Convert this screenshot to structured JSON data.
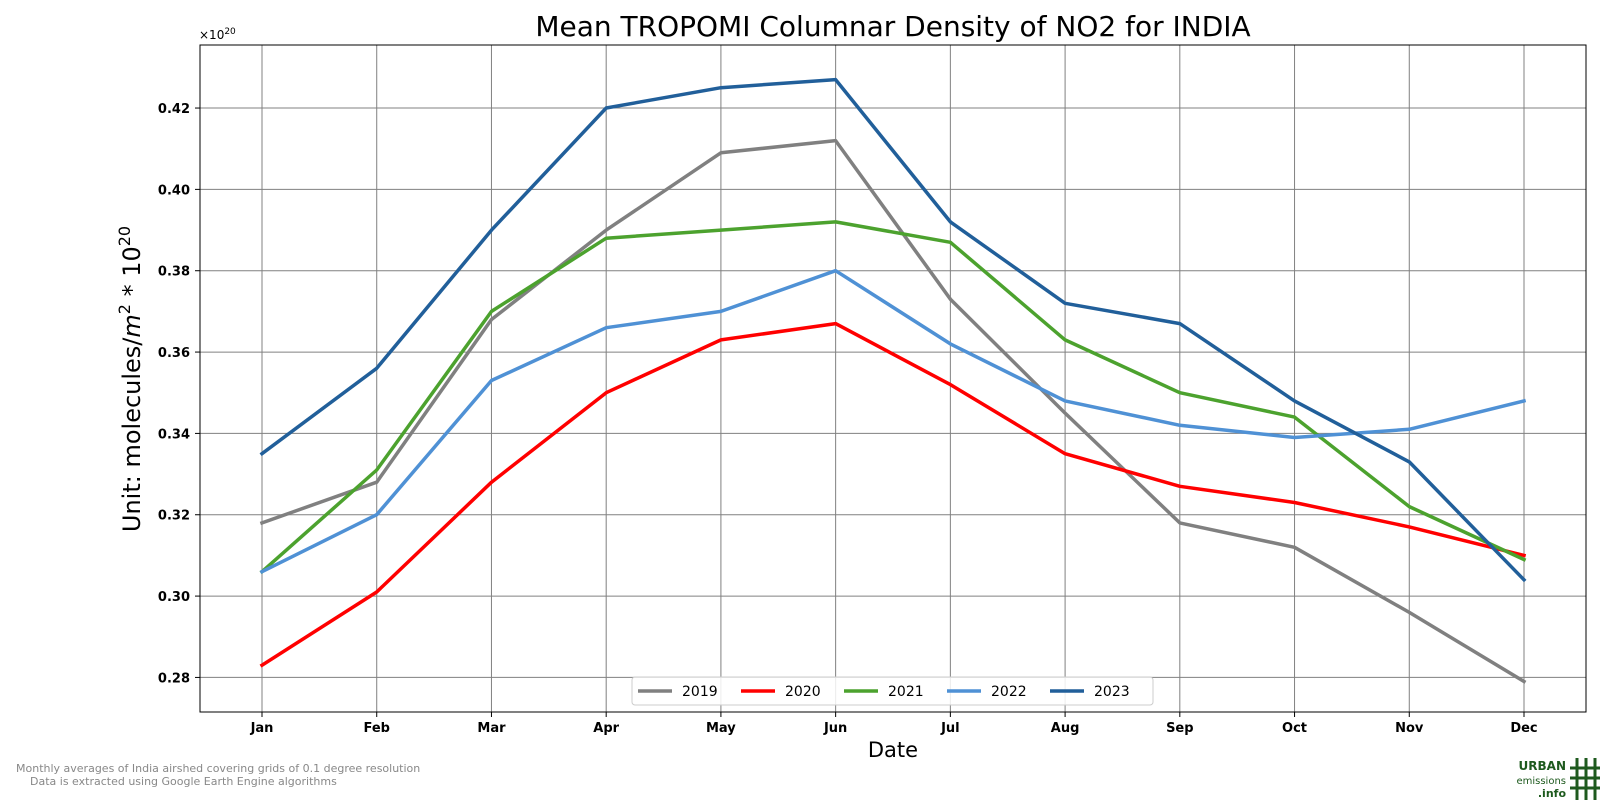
{
  "chart_data": {
    "type": "line",
    "title": "Mean TROPOMI Columnar Density of NO2 for INDIA",
    "xlabel": "Date",
    "ylabel_text": "Unit: molecules/",
    "ylabel_unit_base": "m",
    "ylabel_unit_sup": "2",
    "ylabel_mult": " * 10",
    "ylabel_mult_sup": "20",
    "offset_text_base": "×10",
    "offset_text_sup": "20",
    "categories": [
      "Jan",
      "Feb",
      "Mar",
      "Apr",
      "May",
      "Jun",
      "Jul",
      "Aug",
      "Sep",
      "Oct",
      "Nov",
      "Dec"
    ],
    "ylim": [
      0.2715,
      0.4355
    ],
    "yticks": [
      0.28,
      0.3,
      0.32,
      0.34,
      0.36,
      0.38,
      0.4,
      0.42
    ],
    "ytick_labels": [
      "0.28",
      "0.30",
      "0.32",
      "0.34",
      "0.36",
      "0.38",
      "0.40",
      "0.42"
    ],
    "grid": true,
    "legend_position": "bottom-center",
    "series": [
      {
        "name": "2019",
        "color": "#808080",
        "values": [
          0.318,
          0.328,
          0.368,
          0.39,
          0.409,
          0.412,
          0.373,
          0.345,
          0.318,
          0.312,
          0.296,
          0.279
        ]
      },
      {
        "name": "2020",
        "color": "#ff0000",
        "values": [
          0.283,
          0.301,
          0.328,
          0.35,
          0.363,
          0.367,
          0.352,
          0.335,
          0.327,
          0.323,
          0.317,
          0.31
        ]
      },
      {
        "name": "2021",
        "color": "#4ca22e",
        "values": [
          0.306,
          0.331,
          0.37,
          0.388,
          0.39,
          0.392,
          0.387,
          0.363,
          0.35,
          0.344,
          0.322,
          0.309
        ]
      },
      {
        "name": "2022",
        "color": "#4f91d5",
        "values": [
          0.306,
          0.32,
          0.353,
          0.366,
          0.37,
          0.38,
          0.362,
          0.348,
          0.342,
          0.339,
          0.341,
          0.348
        ]
      },
      {
        "name": "2023",
        "color": "#215f9a",
        "values": [
          0.335,
          0.356,
          0.39,
          0.42,
          0.425,
          0.427,
          0.392,
          0.372,
          0.367,
          0.348,
          0.333,
          0.304
        ]
      }
    ]
  },
  "footer": {
    "line1": "Monthly averages of India airshed covering grids of 0.1 degree resolution",
    "line2": "Data is extracted using Google Earth Engine algorithms"
  },
  "logo": {
    "line1": "URBAN",
    "line2": "emissions",
    "line3": ".info",
    "color": "#1e5a1e"
  }
}
